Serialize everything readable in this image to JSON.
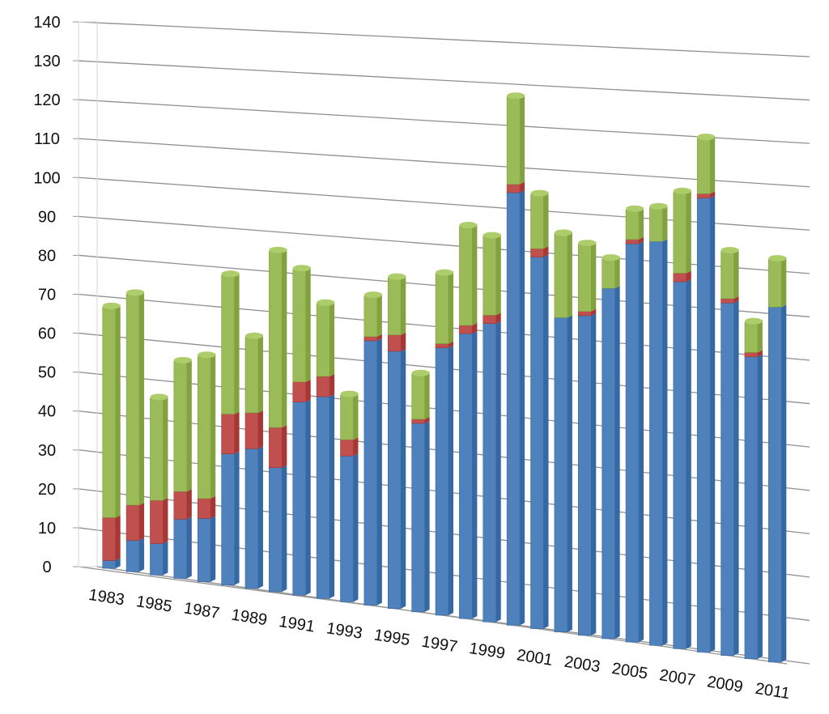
{
  "chart_data": {
    "type": "bar",
    "stacked": true,
    "three_d": true,
    "grid": true,
    "legend": "none",
    "title": "",
    "xlabel": "",
    "ylabel": "",
    "ylim": [
      0,
      140
    ],
    "y_ticks": [
      0,
      10,
      20,
      30,
      40,
      50,
      60,
      70,
      80,
      90,
      100,
      110,
      120,
      130,
      140
    ],
    "x_tick_labels": [
      "1983",
      "1985",
      "1987",
      "1989",
      "1991",
      "1993",
      "1995",
      "1997",
      "1999",
      "2001",
      "2003",
      "2005",
      "2007",
      "2009",
      "2011"
    ],
    "categories": [
      "1983",
      "1984",
      "1985",
      "1986",
      "1987",
      "1988",
      "1989",
      "1990",
      "1991",
      "1992",
      "1993",
      "1994",
      "1995",
      "1996",
      "1997",
      "1998",
      "1999",
      "2000",
      "2001",
      "2002",
      "2003",
      "2004",
      "2005",
      "2006",
      "2007",
      "2008",
      "2009",
      "2010",
      "2011"
    ],
    "series": [
      {
        "color": "#4F81BD",
        "values": [
          2,
          8,
          8,
          15,
          16,
          33,
          35,
          31,
          48,
          50,
          36,
          65,
          63,
          46,
          65,
          69,
          72,
          104,
          89,
          75,
          76,
          83,
          94,
          95,
          86,
          106,
          82,
          70,
          82
        ]
      },
      {
        "color": "#C0504D",
        "values": [
          11,
          9,
          11,
          7,
          5,
          10,
          9,
          10,
          5,
          5,
          4,
          1,
          4,
          1,
          1,
          2,
          2,
          2,
          2,
          0,
          1,
          0,
          1,
          0,
          2,
          1,
          1,
          1,
          0
        ]
      },
      {
        "color": "#9BBB59",
        "values": [
          54,
          54,
          26,
          33,
          36,
          35,
          19,
          44,
          28,
          18,
          11,
          10,
          14,
          11,
          17,
          24,
          19,
          21,
          13,
          20,
          16,
          7,
          7,
          8,
          19,
          13,
          11,
          7,
          11
        ]
      }
    ]
  }
}
